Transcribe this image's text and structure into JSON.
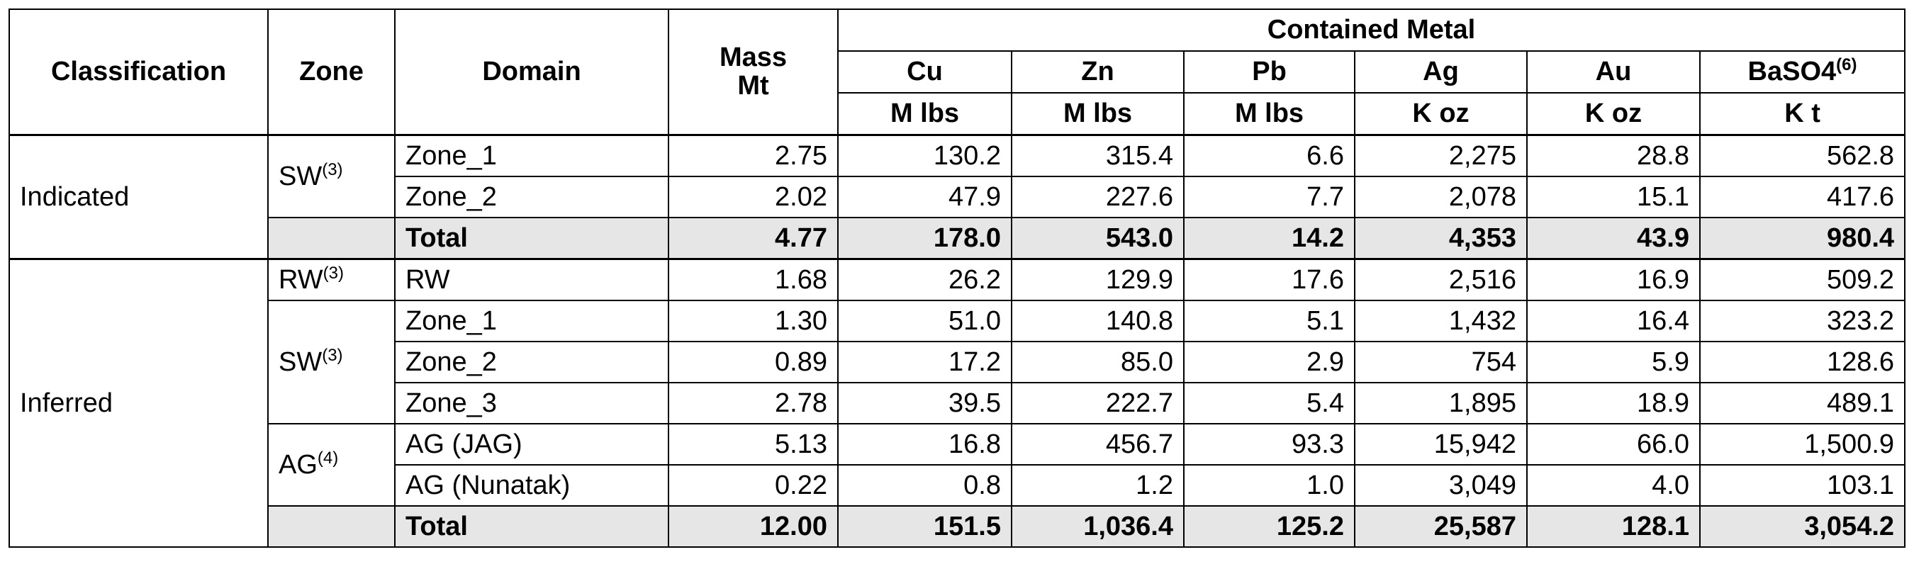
{
  "table": {
    "header": {
      "classification": "Classification",
      "zone": "Zone",
      "domain": "Domain",
      "mass": [
        "Mass",
        "Mt"
      ],
      "contained_metal": "Contained Metal",
      "metals": [
        {
          "name": "Cu",
          "unit": "M lbs"
        },
        {
          "name": "Zn",
          "unit": "M lbs"
        },
        {
          "name": "Pb",
          "unit": "M lbs"
        },
        {
          "name": "Ag",
          "unit": "K oz"
        },
        {
          "name": "Au",
          "unit": "K oz"
        },
        {
          "name": "BaSO4",
          "note": "(6)",
          "unit": "K t"
        }
      ]
    },
    "groups": [
      {
        "classification": "Indicated",
        "zones": [
          {
            "label": "SW",
            "note": "(3)",
            "rows": [
              {
                "domain": "Zone_1",
                "values": [
                  "2.75",
                  "130.2",
                  "315.4",
                  "6.6",
                  "2,275",
                  "28.8",
                  "562.8"
                ]
              },
              {
                "domain": "Zone_2",
                "values": [
                  "2.02",
                  "47.9",
                  "227.6",
                  "7.7",
                  "2,078",
                  "15.1",
                  "417.6"
                ]
              }
            ]
          }
        ],
        "total": {
          "label": "Total",
          "values": [
            "4.77",
            "178.0",
            "543.0",
            "14.2",
            "4,353",
            "43.9",
            "980.4"
          ]
        }
      },
      {
        "classification": "Inferred",
        "zones": [
          {
            "label": "RW",
            "note": "(3)",
            "rows": [
              {
                "domain": "RW",
                "values": [
                  "1.68",
                  "26.2",
                  "129.9",
                  "17.6",
                  "2,516",
                  "16.9",
                  "509.2"
                ]
              }
            ]
          },
          {
            "label": "SW",
            "note": "(3)",
            "rows": [
              {
                "domain": "Zone_1",
                "values": [
                  "1.30",
                  "51.0",
                  "140.8",
                  "5.1",
                  "1,432",
                  "16.4",
                  "323.2"
                ]
              },
              {
                "domain": "Zone_2",
                "values": [
                  "0.89",
                  "17.2",
                  "85.0",
                  "2.9",
                  "754",
                  "5.9",
                  "128.6"
                ]
              },
              {
                "domain": "Zone_3",
                "values": [
                  "2.78",
                  "39.5",
                  "222.7",
                  "5.4",
                  "1,895",
                  "18.9",
                  "489.1"
                ]
              }
            ]
          },
          {
            "label": "AG",
            "note": "(4)",
            "rows": [
              {
                "domain": "AG (JAG)",
                "values": [
                  "5.13",
                  "16.8",
                  "456.7",
                  "93.3",
                  "15,942",
                  "66.0",
                  "1,500.9"
                ]
              },
              {
                "domain": "AG (Nunatak)",
                "values": [
                  "0.22",
                  "0.8",
                  "1.2",
                  "1.0",
                  "3,049",
                  "4.0",
                  "103.1"
                ]
              }
            ]
          }
        ],
        "total": {
          "label": "Total",
          "values": [
            "12.00",
            "151.5",
            "1,036.4",
            "125.2",
            "25,587",
            "128.1",
            "3,054.2"
          ]
        }
      }
    ]
  }
}
